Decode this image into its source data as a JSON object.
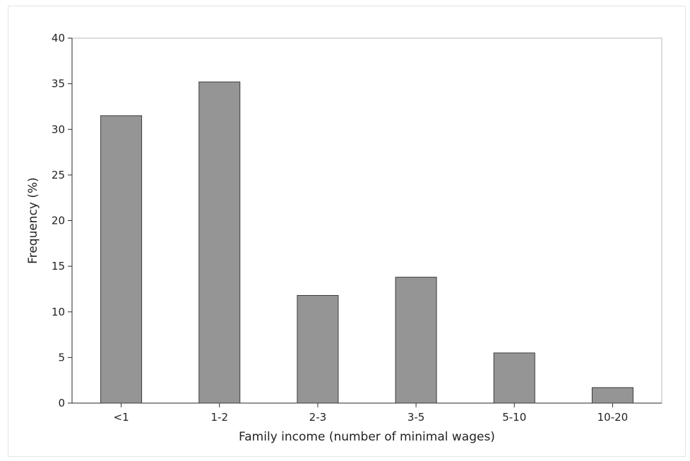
{
  "chart_data": {
    "type": "bar",
    "title": "",
    "xlabel": "Family income (number of minimal wages)",
    "ylabel": "Frequency (%)",
    "categories": [
      "<1",
      "1-2",
      "2-3",
      "3-5",
      "5-10",
      "10-20"
    ],
    "values": [
      31.5,
      35.2,
      11.8,
      13.8,
      5.5,
      1.7
    ],
    "ylim": [
      0,
      40
    ],
    "yticks": [
      0,
      5,
      10,
      15,
      20,
      25,
      30,
      35,
      40
    ],
    "grid": false,
    "legend": "none",
    "bar_color": "#959595",
    "bar_edge_color": "#3a3a3a"
  }
}
